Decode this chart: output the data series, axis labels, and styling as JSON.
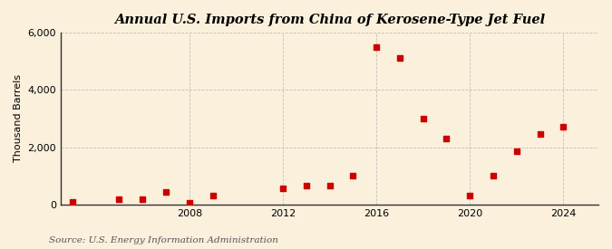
{
  "title": "Annual U.S. Imports from China of Kerosene-Type Jet Fuel",
  "ylabel": "Thousand Barrels",
  "source": "Source: U.S. Energy Information Administration",
  "years": [
    2003,
    2005,
    2006,
    2007,
    2008,
    2009,
    2012,
    2013,
    2014,
    2015,
    2016,
    2017,
    2018,
    2019,
    2020,
    2021,
    2022,
    2023,
    2024
  ],
  "values": [
    80,
    200,
    200,
    450,
    50,
    300,
    550,
    650,
    650,
    1000,
    5500,
    5100,
    3000,
    2300,
    300,
    1000,
    1850,
    2450,
    2700
  ],
  "marker_color": "#cc0000",
  "background_color": "#faf0dc",
  "plot_bg_color": "#faf0dc",
  "grid_color": "#bbbbbb",
  "ylim": [
    0,
    6000
  ],
  "xlim": [
    2002.5,
    2025.5
  ],
  "yticks": [
    0,
    2000,
    4000,
    6000
  ],
  "ytick_labels": [
    "0",
    "2,000",
    "4,000",
    "6,000"
  ],
  "xticks": [
    2008,
    2012,
    2016,
    2020,
    2024
  ],
  "title_fontsize": 10.5,
  "label_fontsize": 8,
  "tick_fontsize": 8,
  "source_fontsize": 7.5
}
